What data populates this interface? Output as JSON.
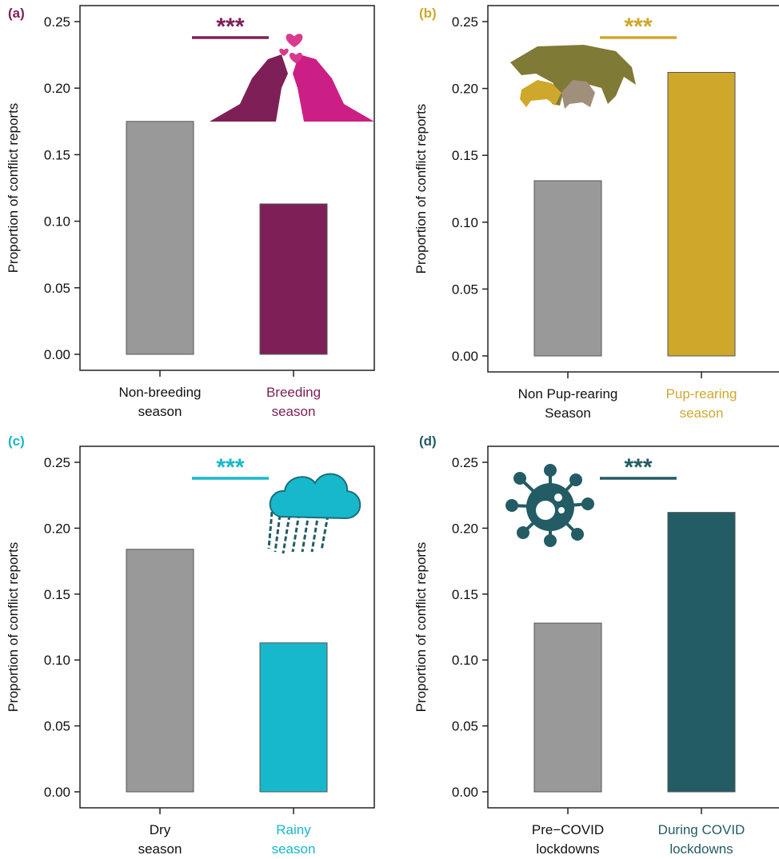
{
  "chart_data": [
    {
      "panel": "(a)",
      "type": "bar",
      "categories": [
        "Non-breeding\nseason",
        "Breeding\nseason"
      ],
      "values": [
        0.175,
        0.113
      ],
      "ylabel": "Proportion of conflict reports",
      "ylim": [
        0,
        0.25
      ],
      "yticks": [
        "0.00",
        "0.05",
        "0.10",
        "0.15",
        "0.20",
        "0.25"
      ],
      "colors": [
        "#999999",
        "#7e2057"
      ],
      "category_label_colors": [
        "#111111",
        "#7e2057"
      ],
      "significance": "***",
      "accent": "#7e2057",
      "icon": "wolf-pair-hearts-icon"
    },
    {
      "panel": "(b)",
      "type": "bar",
      "categories": [
        "Non Pup-rearing\nSeason",
        "Pup-rearing\nseason"
      ],
      "values": [
        0.131,
        0.212
      ],
      "ylabel": "Proportion of conflict reports",
      "ylim": [
        0,
        0.25
      ],
      "yticks": [
        "0.00",
        "0.05",
        "0.10",
        "0.15",
        "0.20",
        "0.25"
      ],
      "colors": [
        "#999999",
        "#cfa82b"
      ],
      "category_label_colors": [
        "#111111",
        "#cfa82b"
      ],
      "significance": "***",
      "accent": "#cfa82b",
      "icon": "coyote-with-pups-icon"
    },
    {
      "panel": "(c)",
      "type": "bar",
      "categories": [
        "Dry\nseason",
        "Rainy\nseason"
      ],
      "values": [
        0.184,
        0.113
      ],
      "ylabel": "Proportion of conflict reports",
      "ylim": [
        0,
        0.25
      ],
      "yticks": [
        "0.00",
        "0.05",
        "0.10",
        "0.15",
        "0.20",
        "0.25"
      ],
      "colors": [
        "#999999",
        "#17b8cb"
      ],
      "category_label_colors": [
        "#111111",
        "#17b8cb"
      ],
      "significance": "***",
      "accent": "#17b8cb",
      "icon": "rain-cloud-icon"
    },
    {
      "panel": "(d)",
      "type": "bar",
      "categories": [
        "Pre−COVID\nlockdowns",
        "During COVID\nlockdowns"
      ],
      "values": [
        0.128,
        0.212
      ],
      "ylabel": "Proportion of conflict reports",
      "ylim": [
        0,
        0.25
      ],
      "yticks": [
        "0.00",
        "0.05",
        "0.10",
        "0.15",
        "0.20",
        "0.25"
      ],
      "colors": [
        "#999999",
        "#235c64"
      ],
      "category_label_colors": [
        "#111111",
        "#235c64"
      ],
      "significance": "***",
      "accent": "#235c64",
      "icon": "virus-icon"
    }
  ]
}
